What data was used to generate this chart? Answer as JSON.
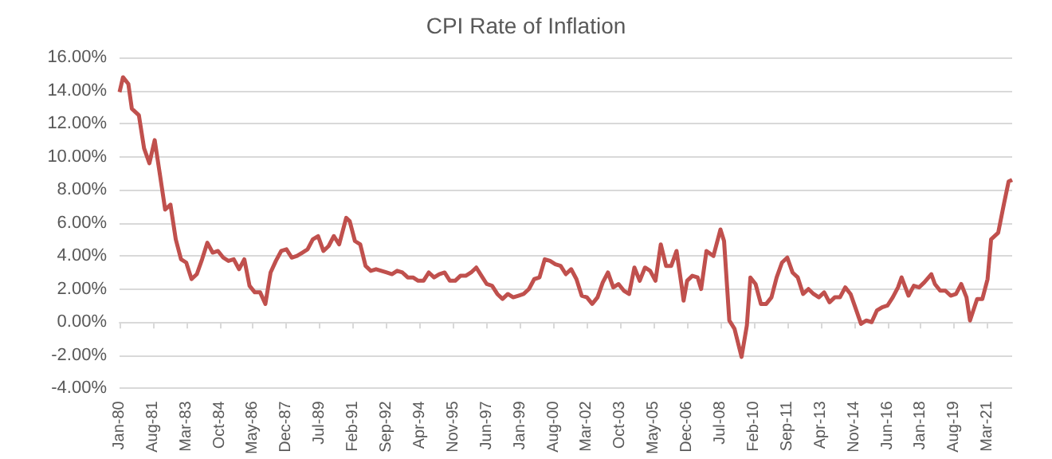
{
  "chart_data": {
    "type": "line",
    "title": "CPI Rate of Inflation",
    "color": "#c0504d",
    "marker": "none",
    "grid": "y",
    "x": [
      "1980-01",
      "1980-03",
      "1980-06",
      "1980-08",
      "1980-12",
      "1981-03",
      "1981-06",
      "1981-09",
      "1981-12",
      "1982-03",
      "1982-06",
      "1982-09",
      "1982-12",
      "1983-03",
      "1983-06",
      "1983-09",
      "1983-12",
      "1984-03",
      "1984-06",
      "1984-09",
      "1984-12",
      "1985-03",
      "1985-06",
      "1985-09",
      "1985-12",
      "1986-03",
      "1986-06",
      "1986-09",
      "1986-12",
      "1987-03",
      "1987-06",
      "1987-09",
      "1987-12",
      "1988-03",
      "1988-06",
      "1988-09",
      "1988-12",
      "1989-03",
      "1989-06",
      "1989-09",
      "1989-12",
      "1990-03",
      "1990-06",
      "1990-10",
      "1990-12",
      "1991-03",
      "1991-06",
      "1991-09",
      "1991-12",
      "1992-03",
      "1992-06",
      "1992-09",
      "1992-12",
      "1993-03",
      "1993-06",
      "1993-09",
      "1993-12",
      "1994-03",
      "1994-06",
      "1994-09",
      "1994-12",
      "1995-03",
      "1995-06",
      "1995-09",
      "1995-12",
      "1996-03",
      "1996-06",
      "1996-09",
      "1996-12",
      "1997-03",
      "1997-06",
      "1997-09",
      "1997-12",
      "1998-03",
      "1998-06",
      "1998-09",
      "1998-12",
      "1999-03",
      "1999-06",
      "1999-09",
      "1999-12",
      "2000-03",
      "2000-06",
      "2000-09",
      "2000-12",
      "2001-03",
      "2001-06",
      "2001-09",
      "2001-12",
      "2002-03",
      "2002-06",
      "2002-09",
      "2002-12",
      "2003-03",
      "2003-06",
      "2003-09",
      "2003-12",
      "2004-03",
      "2004-06",
      "2004-09",
      "2004-12",
      "2005-03",
      "2005-06",
      "2005-09",
      "2005-12",
      "2006-03",
      "2006-06",
      "2006-09",
      "2006-10",
      "2006-12",
      "2007-03",
      "2007-06",
      "2007-08",
      "2007-11",
      "2008-03",
      "2008-07",
      "2008-09",
      "2008-12",
      "2009-03",
      "2009-07",
      "2009-10",
      "2009-12",
      "2010-03",
      "2010-06",
      "2010-09",
      "2010-12",
      "2011-03",
      "2011-06",
      "2011-09",
      "2011-12",
      "2012-03",
      "2012-06",
      "2012-09",
      "2012-12",
      "2013-03",
      "2013-06",
      "2013-09",
      "2013-12",
      "2014-03",
      "2014-06",
      "2014-09",
      "2014-12",
      "2015-03",
      "2015-06",
      "2015-09",
      "2015-12",
      "2016-03",
      "2016-06",
      "2016-09",
      "2016-12",
      "2017-02",
      "2017-06",
      "2017-09",
      "2017-12",
      "2018-03",
      "2018-07",
      "2018-09",
      "2018-12",
      "2019-03",
      "2019-06",
      "2019-09",
      "2019-12",
      "2020-03",
      "2020-05",
      "2020-09",
      "2020-12",
      "2021-03",
      "2021-05",
      "2021-09",
      "2021-12",
      "2022-03",
      "2022-05"
    ],
    "values": [
      13.9,
      14.8,
      14.4,
      12.9,
      12.5,
      10.5,
      9.6,
      11.0,
      8.9,
      6.8,
      7.1,
      5.0,
      3.8,
      3.6,
      2.6,
      2.9,
      3.8,
      4.8,
      4.2,
      4.3,
      3.9,
      3.7,
      3.8,
      3.2,
      3.8,
      2.2,
      1.8,
      1.8,
      1.1,
      3.0,
      3.7,
      4.3,
      4.4,
      3.9,
      4.0,
      4.2,
      4.4,
      5.0,
      5.2,
      4.3,
      4.6,
      5.2,
      4.7,
      6.3,
      6.1,
      4.9,
      4.7,
      3.4,
      3.1,
      3.2,
      3.1,
      3.0,
      2.9,
      3.1,
      3.0,
      2.7,
      2.7,
      2.5,
      2.5,
      3.0,
      2.7,
      2.9,
      3.0,
      2.5,
      2.5,
      2.8,
      2.8,
      3.0,
      3.3,
      2.8,
      2.3,
      2.2,
      1.7,
      1.4,
      1.7,
      1.5,
      1.6,
      1.7,
      2.0,
      2.6,
      2.7,
      3.8,
      3.7,
      3.5,
      3.4,
      2.9,
      3.2,
      2.6,
      1.6,
      1.5,
      1.1,
      1.5,
      2.4,
      3.0,
      2.1,
      2.3,
      1.9,
      1.7,
      3.3,
      2.5,
      3.3,
      3.1,
      2.5,
      4.7,
      3.4,
      3.4,
      4.3,
      2.1,
      1.3,
      2.5,
      2.8,
      2.7,
      2.0,
      4.3,
      4.0,
      5.6,
      4.9,
      0.1,
      -0.4,
      -2.1,
      -0.2,
      2.7,
      2.3,
      1.1,
      1.1,
      1.5,
      2.7,
      3.6,
      3.9,
      3.0,
      2.7,
      1.7,
      2.0,
      1.7,
      1.5,
      1.8,
      1.2,
      1.5,
      1.5,
      2.1,
      1.7,
      0.8,
      -0.1,
      0.1,
      0.0,
      0.7,
      0.9,
      1.0,
      1.5,
      2.1,
      2.7,
      1.6,
      2.2,
      2.1,
      2.4,
      2.9,
      2.3,
      1.9,
      1.9,
      1.6,
      1.7,
      2.3,
      1.5,
      0.1,
      1.4,
      1.4,
      2.6,
      5.0,
      5.4,
      7.0,
      8.5,
      8.6
    ],
    "xlim": [
      "1980-01",
      "2022-05"
    ],
    "xticks": [
      {
        "value": "1980-01",
        "label": "Jan-80"
      },
      {
        "value": "1981-08",
        "label": "Aug-81"
      },
      {
        "value": "1983-03",
        "label": "Mar-83"
      },
      {
        "value": "1984-10",
        "label": "Oct-84"
      },
      {
        "value": "1986-05",
        "label": "May-86"
      },
      {
        "value": "1987-12",
        "label": "Dec-87"
      },
      {
        "value": "1989-07",
        "label": "Jul-89"
      },
      {
        "value": "1991-02",
        "label": "Feb-91"
      },
      {
        "value": "1992-09",
        "label": "Sep-92"
      },
      {
        "value": "1994-04",
        "label": "Apr-94"
      },
      {
        "value": "1995-11",
        "label": "Nov-95"
      },
      {
        "value": "1997-06",
        "label": "Jun-97"
      },
      {
        "value": "1999-01",
        "label": "Jan-99"
      },
      {
        "value": "2000-08",
        "label": "Aug-00"
      },
      {
        "value": "2002-03",
        "label": "Mar-02"
      },
      {
        "value": "2003-10",
        "label": "Oct-03"
      },
      {
        "value": "2005-05",
        "label": "May-05"
      },
      {
        "value": "2006-12",
        "label": "Dec-06"
      },
      {
        "value": "2008-07",
        "label": "Jul-08"
      },
      {
        "value": "2010-02",
        "label": "Feb-10"
      },
      {
        "value": "2011-09",
        "label": "Sep-11"
      },
      {
        "value": "2013-04",
        "label": "Apr-13"
      },
      {
        "value": "2014-11",
        "label": "Nov-14"
      },
      {
        "value": "2016-06",
        "label": "Jun-16"
      },
      {
        "value": "2018-01",
        "label": "Jan-18"
      },
      {
        "value": "2019-08",
        "label": "Aug-19"
      },
      {
        "value": "2021-03",
        "label": "Mar-21"
      }
    ],
    "ylim": [
      -4,
      16
    ],
    "yticks": [
      {
        "value": -4,
        "label": "-4.00%"
      },
      {
        "value": -2,
        "label": "-2.00%"
      },
      {
        "value": 0,
        "label": "0.00%"
      },
      {
        "value": 2,
        "label": "2.00%"
      },
      {
        "value": 4,
        "label": "4.00%"
      },
      {
        "value": 6,
        "label": "6.00%"
      },
      {
        "value": 8,
        "label": "8.00%"
      },
      {
        "value": 10,
        "label": "10.00%"
      },
      {
        "value": 12,
        "label": "12.00%"
      },
      {
        "value": 14,
        "label": "14.00%"
      },
      {
        "value": 16,
        "label": "16.00%"
      }
    ]
  }
}
